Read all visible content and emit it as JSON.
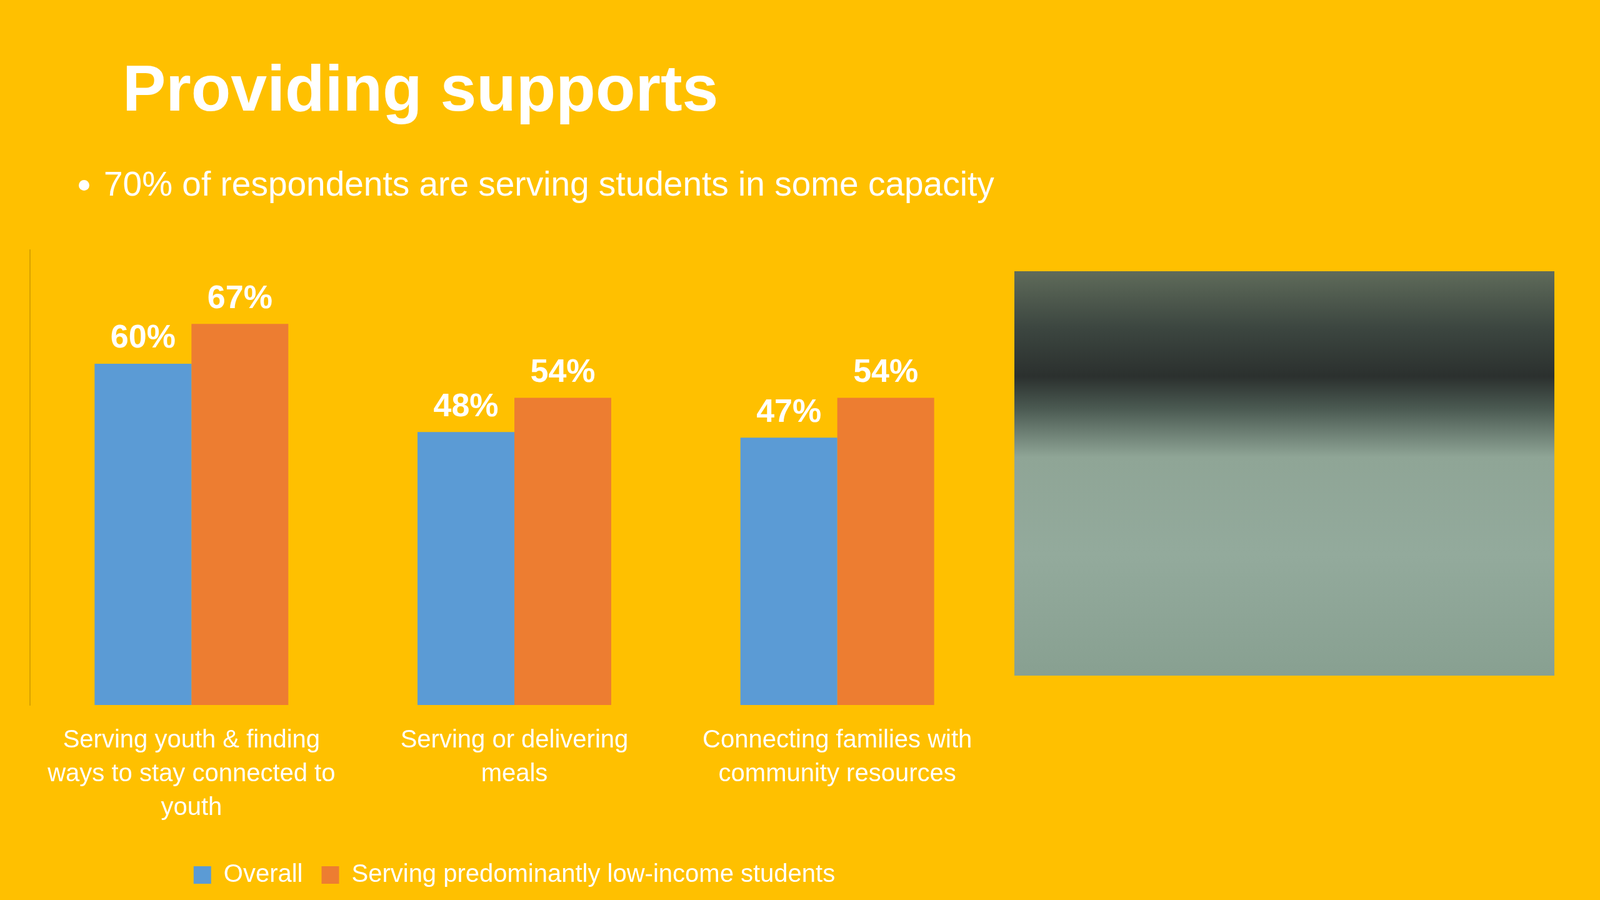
{
  "chart_data": {
    "type": "bar",
    "title": "Providing supports",
    "subtitle": "70% of respondents are serving students in some capacity",
    "categories": [
      "Serving youth & finding ways to stay connected to youth",
      "Serving or delivering meals",
      "Connecting families with community resources"
    ],
    "series": [
      {
        "name": "Overall",
        "color": "#5B9BD5",
        "values": [
          60,
          48,
          47
        ],
        "value_labels": [
          "60%",
          "48%",
          "47%"
        ]
      },
      {
        "name": "Serving predominantly low-income students",
        "color": "#ED7D31",
        "values": [
          67,
          54,
          54
        ],
        "value_labels": [
          "67%",
          "54%",
          "54%"
        ]
      }
    ],
    "ylim": [
      0,
      80
    ],
    "data_labels": true,
    "tick_labels": "x",
    "grid": false,
    "legend": "bottom"
  }
}
